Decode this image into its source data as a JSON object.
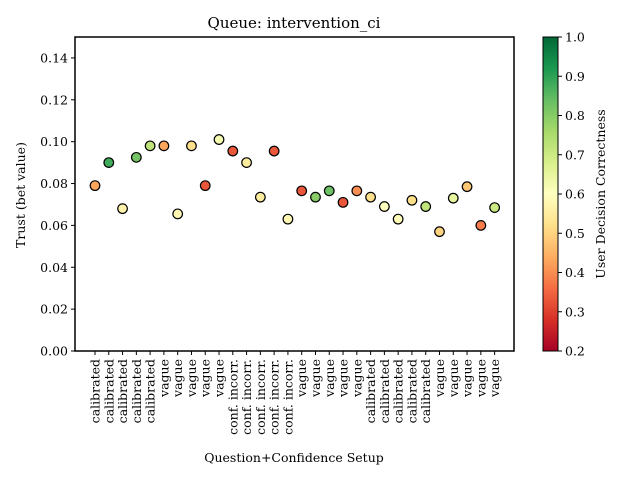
{
  "chart_data": {
    "type": "scatter",
    "title": "Queue: intervention_ci",
    "xlabel": "Question+Confidence Setup",
    "ylabel": "Trust (bet value)",
    "ylim": [
      0,
      0.15
    ],
    "yticks": [
      "0.00",
      "0.02",
      "0.04",
      "0.06",
      "0.08",
      "0.10",
      "0.12",
      "0.14"
    ],
    "ytick_values": [
      0,
      0.02,
      0.04,
      0.06,
      0.08,
      0.1,
      0.12,
      0.14
    ],
    "grid": false,
    "categories": [
      "calibrated",
      "calibrated",
      "calibrated",
      "calibrated",
      "calibrated",
      "vague",
      "vague",
      "vague",
      "vague",
      "vague",
      "conf. incorr.",
      "conf. incorr.",
      "conf. incorr.",
      "conf. incorr.",
      "conf. incorr.",
      "vague",
      "vague",
      "vague",
      "vague",
      "vague",
      "calibrated",
      "calibrated",
      "calibrated",
      "calibrated",
      "calibrated",
      "vague",
      "vague",
      "vague",
      "vague",
      "vague"
    ],
    "values": [
      0.079,
      0.09,
      0.068,
      0.0925,
      0.098,
      0.098,
      0.0655,
      0.098,
      0.079,
      0.101,
      0.0955,
      0.09,
      0.0735,
      0.0955,
      0.063,
      0.0765,
      0.0735,
      0.0765,
      0.071,
      0.0765,
      0.0735,
      0.069,
      0.063,
      0.072,
      0.069,
      0.057,
      0.073,
      0.0785,
      0.06,
      0.0685
    ],
    "color_values": [
      0.43,
      0.88,
      0.57,
      0.82,
      0.72,
      0.43,
      0.58,
      0.52,
      0.33,
      0.62,
      0.33,
      0.55,
      0.55,
      0.33,
      0.58,
      0.33,
      0.8,
      0.83,
      0.33,
      0.4,
      0.52,
      0.6,
      0.59,
      0.52,
      0.72,
      0.5,
      0.65,
      0.48,
      0.38,
      0.7
    ],
    "colorbar": {
      "label": "User Decision Correctness",
      "range": [
        0.2,
        1.0
      ],
      "ticks": [
        "0.2",
        "0.3",
        "0.4",
        "0.5",
        "0.6",
        "0.7",
        "0.8",
        "0.9",
        "1.0"
      ],
      "tick_values": [
        0.2,
        0.3,
        0.4,
        0.5,
        0.6,
        0.7,
        0.8,
        0.9,
        1.0
      ],
      "colormap": "RdYlGn",
      "colormap_stops": [
        "#a50026",
        "#d73027",
        "#f46d43",
        "#fdae61",
        "#fee08b",
        "#ffffbf",
        "#d9ef8b",
        "#a6d96a",
        "#66bd63",
        "#1a9850",
        "#006837"
      ]
    }
  }
}
